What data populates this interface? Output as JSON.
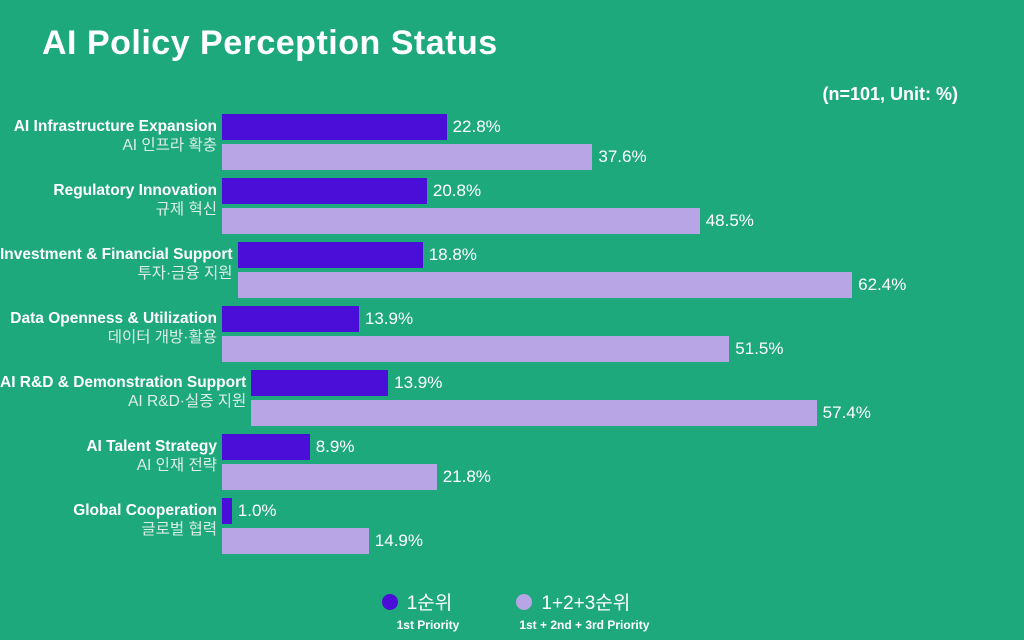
{
  "title": "AI Policy Perception Status",
  "note": "(n=101, Unit: %)",
  "colors": {
    "background": "#1ea97c",
    "first_priority": "#4b0ed9",
    "cumulative": "#b7a5e6",
    "text": "#ffffff",
    "text_korean": "#dcefe6"
  },
  "legend": {
    "first": {
      "label_ko": "1순위",
      "label_en": "1st Priority"
    },
    "cumulative": {
      "label_ko": "1+2+3순위",
      "label_en": "1st + 2nd + 3rd Priority"
    }
  },
  "chart_data": {
    "type": "bar",
    "orientation": "horizontal",
    "title": "AI Policy Perception Status",
    "note": "(n=101, Unit: %)",
    "xlim": [
      0,
      65
    ],
    "grid": false,
    "legend_position": "bottom",
    "categories": [
      "AI Infrastructure Expansion (AI 인프라 확충)",
      "Regulatory Innovation (규제 혁신)",
      "Investment & Financial Support (투자·금융 지원)",
      "Data Openness & Utilization (데이터 개방·활용)",
      "AI R&D & Demonstration Support (AI R&D·실증 지원)",
      "AI Talent Strategy (AI 인재 전략)",
      "Global Cooperation (글로벌 협력)"
    ],
    "series": [
      {
        "name": "1순위 (1st Priority)",
        "values": [
          22.8,
          20.8,
          18.8,
          13.9,
          13.9,
          8.9,
          1.0
        ]
      },
      {
        "name": "1+2+3순위 (1st + 2nd + 3rd Priority)",
        "values": [
          37.6,
          48.5,
          62.4,
          51.5,
          57.4,
          21.8,
          14.9
        ]
      }
    ],
    "rows": [
      {
        "label_en": "AI Infrastructure Expansion",
        "label_ko": "AI 인프라 확충",
        "first": 22.8,
        "first_label": "22.8%",
        "cumulative": 37.6,
        "cumulative_label": "37.6%"
      },
      {
        "label_en": "Regulatory Innovation",
        "label_ko": "규제 혁신",
        "first": 20.8,
        "first_label": "20.8%",
        "cumulative": 48.5,
        "cumulative_label": "48.5%"
      },
      {
        "label_en": "Investment & Financial Support",
        "label_ko": "투자·금융 지원",
        "first": 18.8,
        "first_label": "18.8%",
        "cumulative": 62.4,
        "cumulative_label": "62.4%"
      },
      {
        "label_en": "Data Openness & Utilization",
        "label_ko": "데이터 개방·활용",
        "first": 13.9,
        "first_label": "13.9%",
        "cumulative": 51.5,
        "cumulative_label": "51.5%"
      },
      {
        "label_en": "AI R&D & Demonstration Support",
        "label_ko": "AI R&D·실증 지원",
        "first": 13.9,
        "first_label": "13.9%",
        "cumulative": 57.4,
        "cumulative_label": "57.4%"
      },
      {
        "label_en": "AI Talent Strategy",
        "label_ko": "AI 인재 전략",
        "first": 8.9,
        "first_label": "8.9%",
        "cumulative": 21.8,
        "cumulative_label": "21.8%"
      },
      {
        "label_en": "Global Cooperation",
        "label_ko": "글로벌 협력",
        "first": 1.0,
        "first_label": "1.0%",
        "cumulative": 14.9,
        "cumulative_label": "14.9%"
      }
    ]
  }
}
